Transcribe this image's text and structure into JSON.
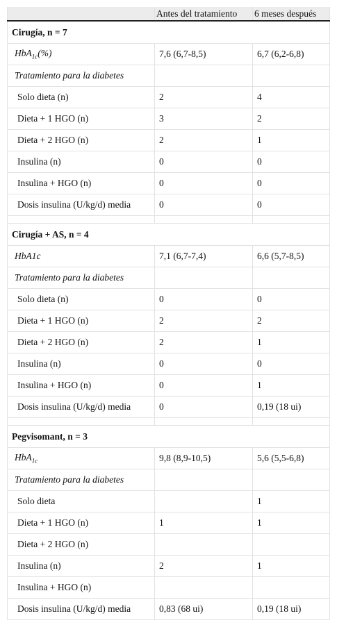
{
  "table": {
    "header": [
      "Antes del tratamiento",
      "6 meses después"
    ],
    "sections": [
      {
        "title": "Cirugía, n = 7",
        "rows": [
          {
            "label": {
              "text": "HbA",
              "sub": "1c",
              "suffix": "(%)"
            },
            "before": "7,6 (6,7-8,5)",
            "after": "6,7 (6,2-6,8)"
          },
          {
            "label": "Tratamiento para la diabetes",
            "before": null,
            "after": null
          },
          {
            "label": "Solo dieta (n)",
            "before": "2",
            "after": "4"
          },
          {
            "label": "Dieta + 1 HGO (n)",
            "before": "3",
            "after": "2"
          },
          {
            "label": "Dieta + 2 HGO (n)",
            "before": "2",
            "after": "1"
          },
          {
            "label": "Insulina (n)",
            "before": "0",
            "after": "0"
          },
          {
            "label": "Insulina + HGO (n)",
            "before": "0",
            "after": "0"
          },
          {
            "label": "Dosis insulina (U/kg/d) media",
            "before": "0",
            "after": "0"
          }
        ]
      },
      {
        "title": "Cirugía + AS, n = 4",
        "rows": [
          {
            "label": "HbA1c",
            "before": "7,1 (6,7-7,4)",
            "after": "6,6 (5,7-8,5)"
          },
          {
            "label": "Tratamiento para la diabetes",
            "before": null,
            "after": null
          },
          {
            "label": "Solo dieta (n)",
            "before": "0",
            "after": "0"
          },
          {
            "label": "Dieta + 1 HGO (n)",
            "before": "2",
            "after": "2"
          },
          {
            "label": "Dieta + 2 HGO (n)",
            "before": "2",
            "after": "1"
          },
          {
            "label": "Insulina (n)",
            "before": "0",
            "after": "0"
          },
          {
            "label": "Insulina + HGO (n)",
            "before": "0",
            "after": "1"
          },
          {
            "label": "Dosis insulina (U/kg/d) media",
            "before": "0",
            "after": "0,19 (18 ui)"
          }
        ]
      },
      {
        "title": "Pegvisomant, n = 3",
        "rows": [
          {
            "label": {
              "text": "HbA",
              "sub": "1c"
            },
            "before": "9,8 (8,9-10,5)",
            "after": "5,6 (5,5-6,8)"
          },
          {
            "label": "Tratamiento para la diabetes",
            "before": null,
            "after": null
          },
          {
            "label": "Solo dieta",
            "before": null,
            "after": "1"
          },
          {
            "label": "Dieta + 1 HGO (n)",
            "before": "1",
            "after": "1"
          },
          {
            "label": "Dieta + 2 HGO (n)",
            "before": null,
            "after": null
          },
          {
            "label": "Insulina (n)",
            "before": "2",
            "after": "1"
          },
          {
            "label": "Insulina + HGO (n)",
            "before": null,
            "after": null
          },
          {
            "label": "Dosis insulina (U/kg/d) media",
            "before": "0,83 (68 ui)",
            "after": "0,19 (18 ui)"
          }
        ]
      }
    ]
  }
}
